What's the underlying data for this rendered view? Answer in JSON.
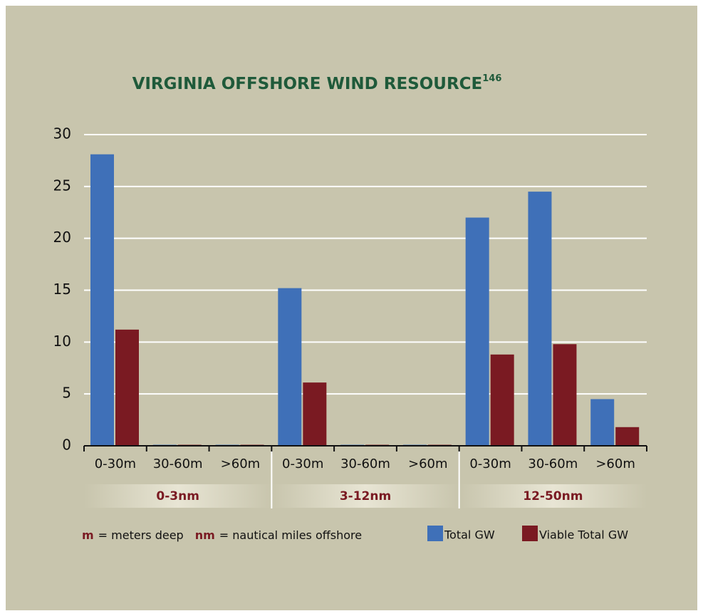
{
  "chart_data": {
    "type": "bar",
    "title": "VIRGINIA OFFSHORE WIND RESOURCE",
    "title_ref": "146",
    "categories": [
      "0-30m",
      "30-60m",
      ">60m",
      "0-30m",
      "30-60m",
      ">60m",
      "0-30m",
      "30-60m",
      ">60m"
    ],
    "groups": [
      "0-3nm",
      "3-12nm",
      "12-50nm"
    ],
    "series": [
      {
        "name": "Total GW",
        "color": "#3f70b8",
        "values": [
          28.1,
          0.1,
          0.1,
          15.2,
          0.1,
          0.1,
          22,
          24.5,
          4.5
        ]
      },
      {
        "name": "Viable Total GW",
        "color": "#7a1a22",
        "values": [
          11.2,
          0.1,
          0.1,
          6.1,
          0.1,
          0.1,
          8.8,
          9.8,
          1.8
        ]
      }
    ],
    "notes": [
      {
        "key": "m",
        "text": "= meters deep"
      },
      {
        "key": "nm",
        "text": "= nautical miles offshore"
      }
    ],
    "ylim": [
      0,
      30
    ],
    "yticks": [
      0,
      5,
      10,
      15,
      20,
      25,
      30
    ],
    "grid": true
  }
}
